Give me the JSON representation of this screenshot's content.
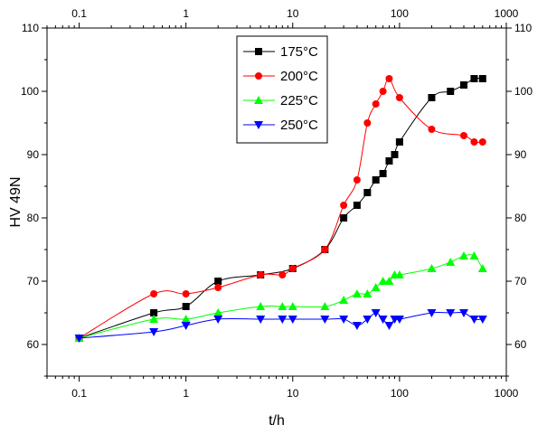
{
  "chart_data": {
    "type": "line",
    "title": "",
    "xlabel": "t/h",
    "ylabel": "HV 49N",
    "xscale": "log",
    "xlim": [
      0.05,
      1000
    ],
    "ylim": [
      55,
      110
    ],
    "x_ticks": [
      0.1,
      1,
      10,
      100,
      1000
    ],
    "x_tick_labels": [
      "0.1",
      "1",
      "10",
      "100",
      "1000"
    ],
    "y_ticks": [
      60,
      70,
      80,
      90,
      100,
      110
    ],
    "y_tick_labels": [
      "60",
      "70",
      "80",
      "90",
      "100",
      "110"
    ],
    "grid": false,
    "mirror_axes": true,
    "legend_position": "top-center",
    "series": [
      {
        "name": "175°C",
        "color": "#000000",
        "marker": "square",
        "x": [
          0.1,
          0.5,
          1,
          2,
          5,
          10,
          20,
          30,
          40,
          50,
          60,
          70,
          80,
          90,
          100,
          200,
          300,
          400,
          500,
          600
        ],
        "y": [
          61,
          65,
          66,
          70,
          71,
          72,
          75,
          80,
          82,
          84,
          86,
          87,
          89,
          90,
          92,
          99,
          100,
          101,
          102,
          102
        ]
      },
      {
        "name": "200°C",
        "color": "#ff0000",
        "marker": "circle",
        "x": [
          0.1,
          0.5,
          1,
          2,
          5,
          8,
          10,
          20,
          30,
          40,
          50,
          60,
          70,
          80,
          100,
          200,
          400,
          500,
          600
        ],
        "y": [
          61,
          68,
          68,
          69,
          71,
          71,
          72,
          75,
          82,
          86,
          95,
          98,
          100,
          102,
          99,
          94,
          93,
          92,
          92
        ]
      },
      {
        "name": "225°C",
        "color": "#00ff00",
        "marker": "triangle-up",
        "x": [
          0.1,
          0.5,
          1,
          2,
          5,
          8,
          10,
          20,
          30,
          40,
          50,
          60,
          70,
          80,
          90,
          100,
          200,
          300,
          400,
          500,
          600
        ],
        "y": [
          61,
          64,
          64,
          65,
          66,
          66,
          66,
          66,
          67,
          68,
          68,
          69,
          70,
          70,
          71,
          71,
          72,
          73,
          74,
          74,
          72
        ]
      },
      {
        "name": "250°C",
        "color": "#0000ff",
        "marker": "triangle-down",
        "x": [
          0.1,
          0.5,
          1,
          2,
          5,
          8,
          10,
          20,
          30,
          40,
          50,
          60,
          70,
          80,
          90,
          100,
          200,
          300,
          400,
          500,
          600
        ],
        "y": [
          61,
          62,
          63,
          64,
          64,
          64,
          64,
          64,
          64,
          63,
          64,
          65,
          64,
          63,
          64,
          64,
          65,
          65,
          65,
          64,
          64
        ]
      }
    ],
    "legend_entries": [
      "175°C",
      "200°C",
      "225°C",
      "250°C"
    ]
  }
}
